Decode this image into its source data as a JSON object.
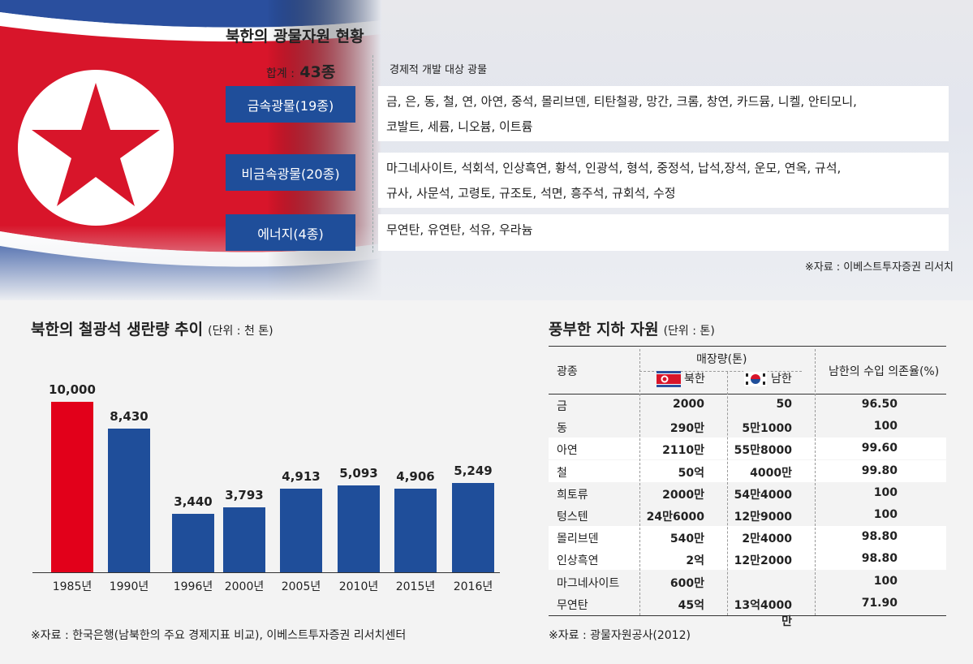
{
  "minerals": {
    "title": "북한의 광물자원 현황",
    "total_label": "합계 :",
    "total_value": "43종",
    "column_header": "경제적 개발 대상 광물",
    "categories": [
      {
        "name": "금속광물(19종)",
        "items": [
          "금, 은, 동, 철, 연, 아연, 중석, 몰리브덴, 티탄철광, 망간, 크롬, 창연, 카드뮴, 니켈, 안티모니,",
          "코발트, 세륨, 니오븀, 이트륨"
        ]
      },
      {
        "name": "비금속광물(20종)",
        "items": [
          "마그네사이트, 석회석, 인상흑연, 황석, 인광석, 형석, 중정석, 납석,장석, 운모, 연옥, 규석,",
          "규사, 사문석, 고령토, 규조토, 석면, 흥주석, 규회석, 수정"
        ]
      },
      {
        "name": "에너지(4종)",
        "items": [
          "무연탄, 유연탄, 석유, 우라늄"
        ]
      }
    ],
    "source": "※자료 : 이베스트투자증권 리서치"
  },
  "chart_data": {
    "type": "bar",
    "title": "북한의 철광석 생란량 추이",
    "unit": "(단위 : 천 톤)",
    "categories": [
      "1985년",
      "1990년",
      "1996년",
      "2000년",
      "2005년",
      "2010년",
      "2015년",
      "2016년"
    ],
    "values": [
      10000,
      8430,
      3440,
      3793,
      4913,
      5093,
      4906,
      5249
    ],
    "value_labels": [
      "10,000",
      "8,430",
      "3,440",
      "3,793",
      "4,913",
      "5,093",
      "4,906",
      "5,249"
    ],
    "colors": [
      "#e2001a",
      "#1f4e9a",
      "#1f4e9a",
      "#1f4e9a",
      "#1f4e9a",
      "#1f4e9a",
      "#1f4e9a",
      "#1f4e9a"
    ],
    "ylim": [
      0,
      10000
    ],
    "source": "※자료 : 한국은행(남북한의 주요 경제지표 비교), 이베스트투자증권 리서치센터"
  },
  "table": {
    "title": "풍부한 지하 자원",
    "unit": "(단위 : 톤)",
    "headers": {
      "type": "광종",
      "reserves": "매장량(톤)",
      "north": "북한",
      "south": "남한",
      "dependence": "남한의 수입 의존율(%)"
    },
    "rows": [
      [
        "금",
        "2000",
        "50",
        "96.50"
      ],
      [
        "동",
        "290만",
        "5만1000",
        "100"
      ],
      [
        "아연",
        "2110만",
        "55만8000",
        "99.60"
      ],
      [
        "철",
        "50억",
        "4000만",
        "99.80"
      ],
      [
        "희토류",
        "2000만",
        "54만4000",
        "100"
      ],
      [
        "텅스텐",
        "24만6000",
        "12만9000",
        "100"
      ],
      [
        "몰리브덴",
        "540만",
        "2만4000",
        "98.80"
      ],
      [
        "인상흑연",
        "2억",
        "12만2000",
        "98.80"
      ],
      [
        "마그네사이트",
        "600만",
        "",
        "100"
      ],
      [
        "무연탄",
        "45억",
        "13억4000만",
        "71.90"
      ]
    ],
    "source": "※자료 : 광물자원공사(2012)"
  }
}
